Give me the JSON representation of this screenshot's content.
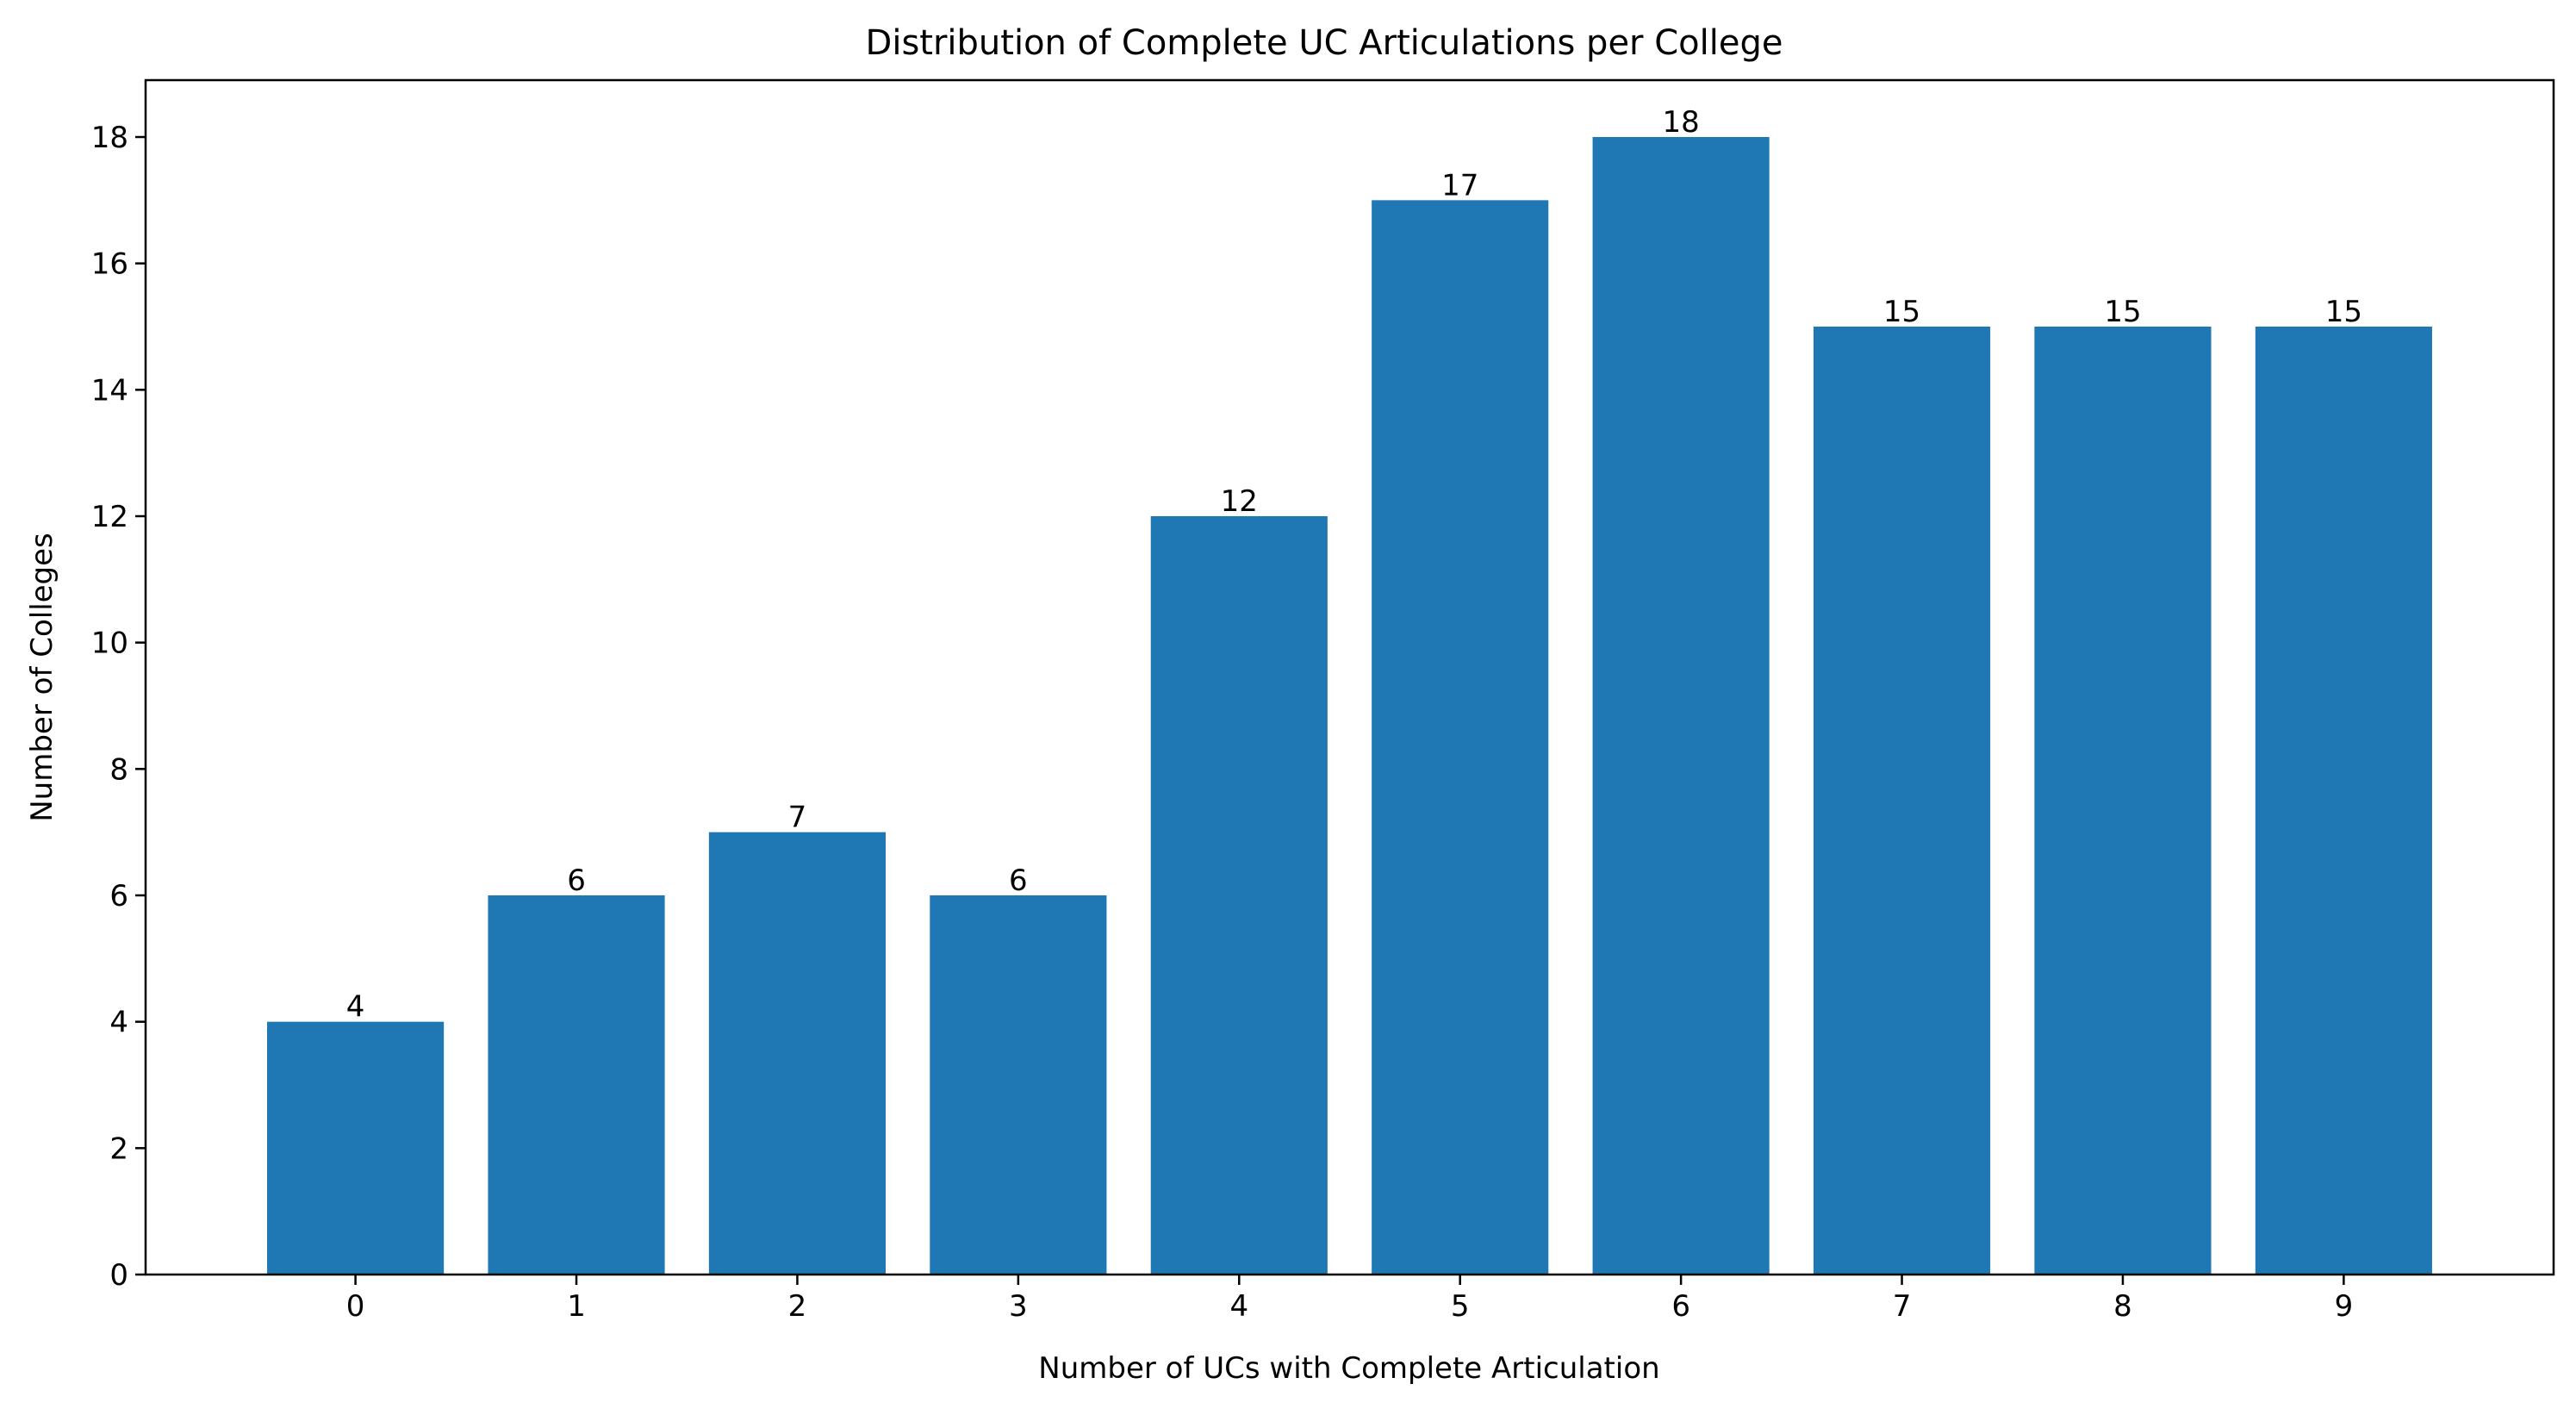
{
  "chart_data": {
    "type": "bar",
    "title": "Distribution of Complete UC Articulations per College",
    "xlabel": "Number of UCs with Complete Articulation",
    "ylabel": "Number of Colleges",
    "categories": [
      "0",
      "1",
      "2",
      "3",
      "4",
      "5",
      "6",
      "7",
      "8",
      "9"
    ],
    "values": [
      4,
      6,
      7,
      6,
      12,
      17,
      18,
      15,
      15,
      15
    ],
    "bar_labels": [
      "4",
      "6",
      "7",
      "6",
      "12",
      "17",
      "18",
      "15",
      "15",
      "15"
    ],
    "ylim": [
      0,
      18.9
    ],
    "yticks": [
      "0",
      "2",
      "4",
      "6",
      "8",
      "10",
      "12",
      "14",
      "16",
      "18"
    ],
    "grid": false,
    "legend": false,
    "bar_color": "#1f77b4"
  }
}
